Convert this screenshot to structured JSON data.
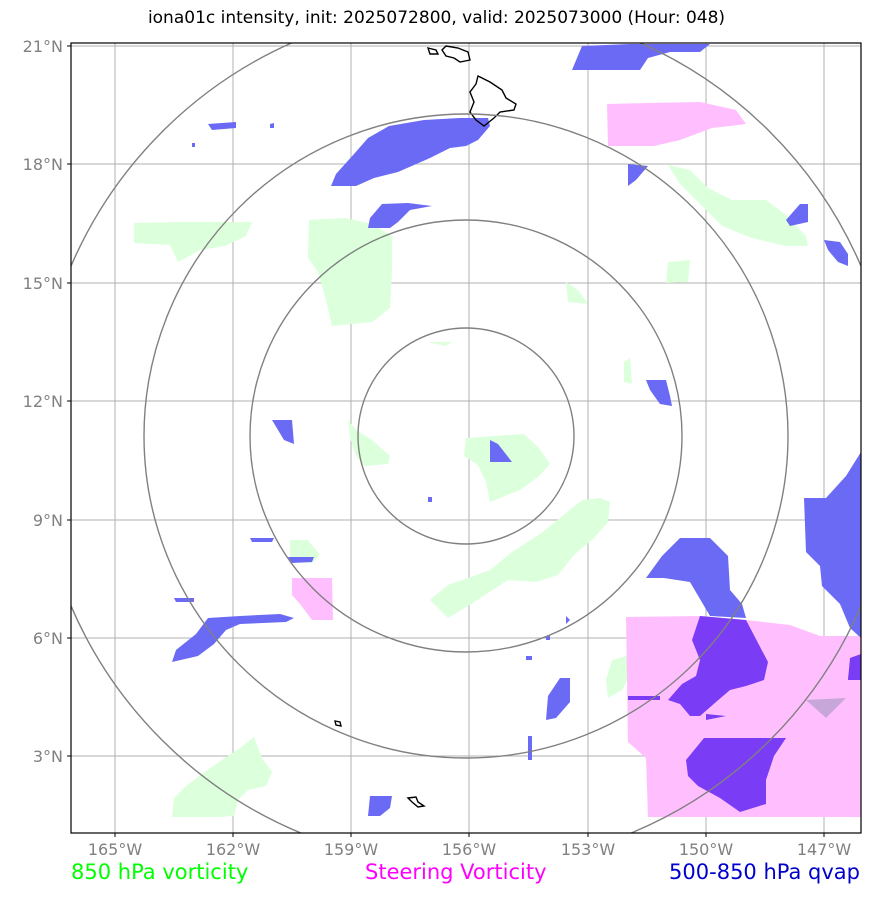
{
  "title": "iona01c intensity, init: 2025072800, valid: 2025073000 (Hour: 048)",
  "lat_ticks": [
    "21°N",
    "18°N",
    "15°N",
    "12°N",
    "9°N",
    "6°N",
    "3°N"
  ],
  "lon_ticks": [
    "165°W",
    "162°W",
    "159°W",
    "156°W",
    "153°W",
    "150°W",
    "147°W"
  ],
  "legend": {
    "green": "850 hPa vorticity",
    "magenta": "Steering Vorticity",
    "blue": "500-850 hPa qvap"
  },
  "colors": {
    "green_fill": "#dcffdc",
    "magenta_fill": "#ffbfff",
    "blue_fill": "#6a6af5",
    "overlap_fill": "#7a3cf5",
    "grid": "#b0b0b0",
    "rings": "#808080"
  },
  "center": {
    "lon": -156,
    "lat": 11.2
  }
}
